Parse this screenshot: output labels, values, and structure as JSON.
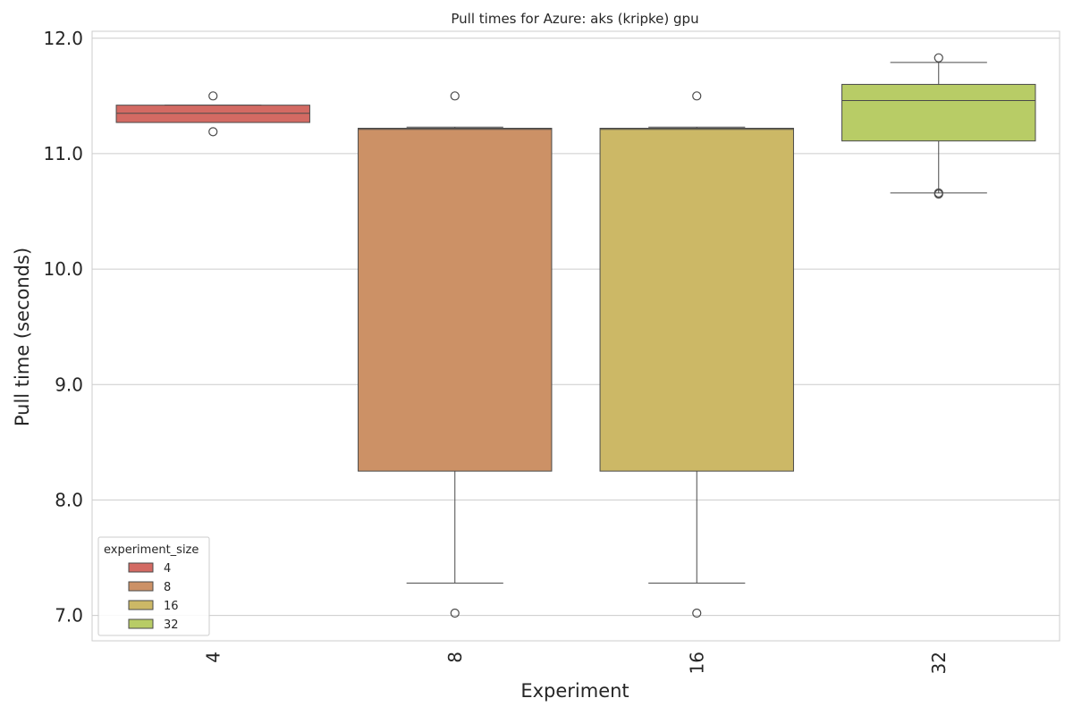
{
  "chart_data": {
    "type": "box",
    "title": "Pull times for Azure: aks (kripke) gpu",
    "xlabel": "Experiment",
    "ylabel": "Pull time (seconds)",
    "ylim": [
      6.78,
      12.06
    ],
    "yticks": [
      "7.0",
      "8.0",
      "9.0",
      "10.0",
      "11.0",
      "12.0"
    ],
    "ytick_values": [
      7.0,
      8.0,
      9.0,
      10.0,
      11.0,
      12.0
    ],
    "categories": [
      "4",
      "8",
      "16",
      "32"
    ],
    "grid": true,
    "legend": {
      "title": "experiment_size",
      "placement": "lower-left",
      "entries": [
        "4",
        "8",
        "16",
        "32"
      ]
    },
    "series": [
      {
        "category": "4",
        "color": "#d36a63",
        "whisker_low": 11.27,
        "q1": 11.27,
        "median": 11.35,
        "q3": 11.42,
        "whisker_high": 11.42,
        "outliers": [
          11.5,
          11.19
        ]
      },
      {
        "category": "8",
        "color": "#cc9166",
        "whisker_low": 7.28,
        "q1": 8.25,
        "median": 11.21,
        "q3": 11.22,
        "whisker_high": 11.23,
        "outliers": [
          11.5,
          7.02
        ]
      },
      {
        "category": "16",
        "color": "#ccb866",
        "whisker_low": 7.28,
        "q1": 8.25,
        "median": 11.21,
        "q3": 11.22,
        "whisker_high": 11.23,
        "outliers": [
          11.5,
          7.02
        ]
      },
      {
        "category": "32",
        "color": "#b8cc66",
        "whisker_low": 10.66,
        "q1": 11.11,
        "median": 11.46,
        "q3": 11.6,
        "whisker_high": 11.79,
        "outliers": [
          11.83,
          10.65,
          10.66
        ]
      }
    ]
  }
}
